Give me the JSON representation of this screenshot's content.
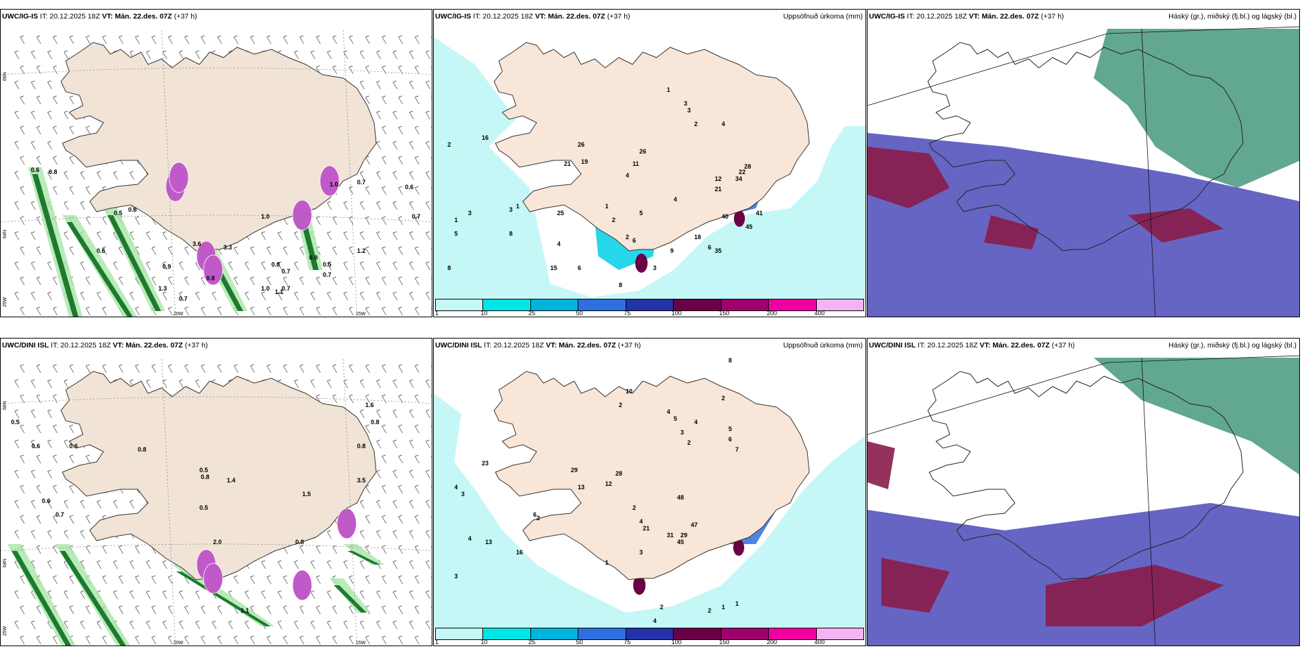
{
  "rows": [
    {
      "wind": {
        "model": "UWC/IG-IS",
        "it": "IT: 20.12.2025 18Z",
        "vt_label": "VT:",
        "vt": "Mán. 22.des. 07Z",
        "lead": "(+37 h)"
      },
      "precip": {
        "model": "UWC/IG-IS",
        "it": "IT: 20.12.2025 18Z",
        "vt_label": "VT:",
        "vt": "Mán. 22.des. 07Z",
        "lead": "(+37 h)",
        "field": "Uppsöfnuð úrkoma (mm)"
      },
      "cloud": {
        "model": "UWC/IG-IS",
        "it": "IT: 20.12.2025 18Z",
        "vt_label": "VT:",
        "vt": "Mán. 22.des. 07Z",
        "lead": "(+37 h)",
        "field": "Háský (gr.), miðský (fj.bl.) og lágský (bl.)"
      },
      "wind_values": [
        "0.6",
        "0.8",
        "0.5",
        "0.8",
        "0.6",
        "0.9",
        "0.8",
        "3.6",
        "3.3",
        "1.0",
        "0.8",
        "0.7",
        "0.9",
        "0.7",
        "1.0",
        "0.7",
        "0.6",
        "0.7",
        "0.5",
        "1.3",
        "0.7",
        "0.7",
        "1.2",
        "1.0",
        "1.1"
      ],
      "precip_values": [
        "16",
        "26",
        "19",
        "21",
        "26",
        "11",
        "4",
        "2",
        "1",
        "3",
        "2",
        "3",
        "4",
        "12",
        "21",
        "34",
        "22",
        "28",
        "41",
        "45",
        "40",
        "35",
        "25",
        "2",
        "1",
        "3",
        "5",
        "8",
        "8",
        "1",
        "3",
        "4",
        "15",
        "6",
        "8",
        "9",
        "18",
        "6",
        "6",
        "5",
        "3",
        "4",
        "1",
        "2"
      ]
    },
    {
      "wind": {
        "model": "UWC/DINI ISL",
        "it": "IT: 20.12.2025 18Z",
        "vt_label": "VT:",
        "vt": "Mán. 22.des. 07Z",
        "lead": "(+37 h)"
      },
      "precip": {
        "model": "UWC/DINI ISL",
        "it": "IT: 20.12.2025 18Z",
        "vt_label": "VT:",
        "vt": "Mán. 22.des. 07Z",
        "lead": "(+37 h)",
        "field": "Uppsöfnuð úrkoma (mm)"
      },
      "cloud": {
        "model": "UWC/DINI ISL",
        "it": "IT: 20.12.2025 18Z",
        "vt_label": "VT:",
        "vt": "Mán. 22.des. 07Z",
        "lead": "(+37 h)",
        "field": "Háský (gr.), miðský (fj.bl.) og lágský (bl.)"
      },
      "wind_values": [
        "0.5",
        "0.6",
        "0.6",
        "0.8",
        "0.5",
        "0.8",
        "1.4",
        "1.5",
        "0.8",
        "0.8",
        "1.6",
        "3.5",
        "0.8",
        "0.5",
        "0.6",
        "0.7",
        "2.0",
        "1.1"
      ],
      "precip_values": [
        "23",
        "29",
        "13",
        "28",
        "12",
        "2",
        "1",
        "2",
        "4",
        "21",
        "31",
        "29",
        "45",
        "47",
        "48",
        "2",
        "3",
        "4",
        "2",
        "10",
        "8",
        "4",
        "2",
        "5",
        "5",
        "6",
        "7",
        "4",
        "3",
        "4",
        "3",
        "16",
        "13",
        "6",
        "3",
        "2",
        "4",
        "2",
        "1",
        "1"
      ]
    }
  ],
  "axes": {
    "lat_labels": [
      "66N",
      "64N",
      "25W"
    ],
    "lon_labels": [
      "20W",
      "15W"
    ]
  },
  "colorbar": {
    "labels": [
      "1",
      "10",
      "25",
      "50",
      "75",
      "100",
      "150",
      "200",
      "400"
    ],
    "colors": [
      "#c6f7f7",
      "#00e5e5",
      "#00b4dc",
      "#2f6fe0",
      "#2233aa",
      "#6a0046",
      "#9e006e",
      "#f000a0",
      "#f4b4f4"
    ]
  }
}
